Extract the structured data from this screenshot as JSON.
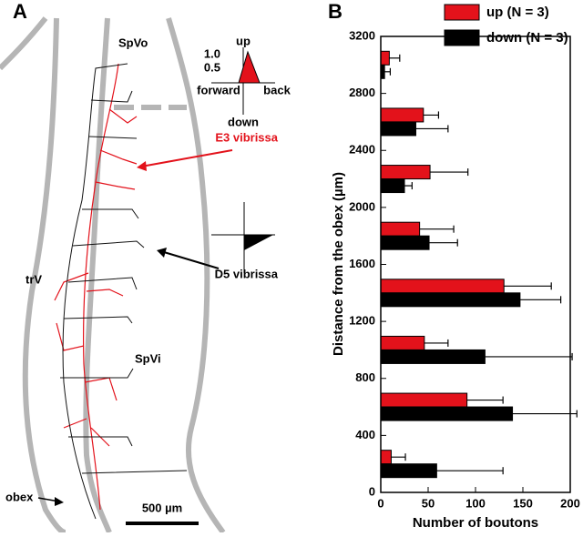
{
  "panel_a": {
    "label": "A",
    "region_top": "SpVo",
    "axis_up": "up",
    "tick_1": "1.0",
    "tick_05": "0.5",
    "axis_forward": "forward",
    "axis_back": "back",
    "axis_down": "down",
    "red_label": "E3 vibrissa",
    "black_label": "D5 vibrissa",
    "tract_label": "trV",
    "region_bottom": "SpVi",
    "obex_label": "obex",
    "scale_label": "500 µm"
  },
  "chart_data": {
    "type": "hbar",
    "label": "B",
    "ylabel": "Distance from the obex (µm)",
    "xlabel": "Number of boutons",
    "positions": [
      3000,
      2600,
      2200,
      1800,
      1400,
      1000,
      600,
      200
    ],
    "series": [
      {
        "name": "up (N = 3)",
        "color": "#e3121b",
        "values": [
          9,
          45,
          52,
          41,
          130,
          46,
          91,
          11
        ],
        "errors": [
          11,
          16,
          40,
          36,
          50,
          25,
          38,
          15
        ]
      },
      {
        "name": "down (N = 3)",
        "color": "#000000",
        "values": [
          4,
          37,
          25,
          51,
          147,
          110,
          139,
          59
        ],
        "errors": [
          6,
          34,
          8,
          30,
          43,
          92,
          68,
          70
        ]
      }
    ],
    "xlim": [
      0,
      200
    ],
    "xticks": [
      0,
      50,
      100,
      150,
      200
    ],
    "ylim": [
      0,
      3200
    ],
    "yticks": [
      0,
      400,
      800,
      1200,
      1600,
      2000,
      2400,
      2800,
      3200
    ],
    "legend": "top-right"
  }
}
